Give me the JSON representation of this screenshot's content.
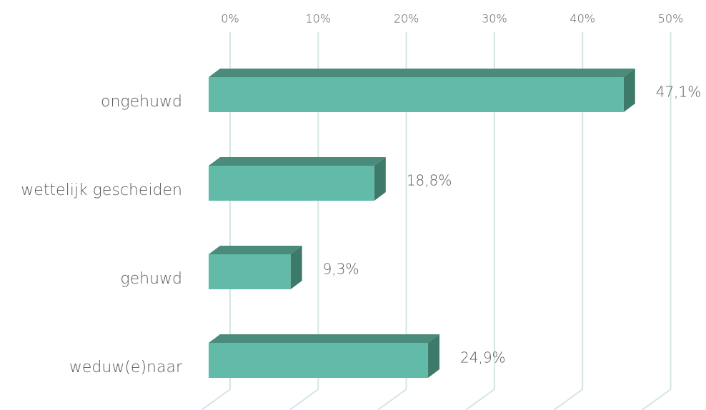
{
  "chart_data": {
    "type": "bar3d_horizontal",
    "categories": [
      "ongehuwd",
      "wettelijk gescheiden",
      "gehuwd",
      "weduw(e)naar"
    ],
    "values": [
      47.1,
      18.8,
      9.3,
      24.9
    ],
    "value_labels": [
      "47,1%",
      "18,8%",
      "9,3%",
      "24,9%"
    ],
    "color": "#62bba9",
    "xlim": [
      0,
      50
    ],
    "xticks": [
      {
        "value": 0,
        "label": "0%"
      },
      {
        "value": 10,
        "label": "10%"
      },
      {
        "value": 20,
        "label": "20%"
      },
      {
        "value": 30,
        "label": "30%"
      },
      {
        "value": 40,
        "label": "40%"
      },
      {
        "value": 50,
        "label": "50%"
      }
    ],
    "grid": true
  }
}
